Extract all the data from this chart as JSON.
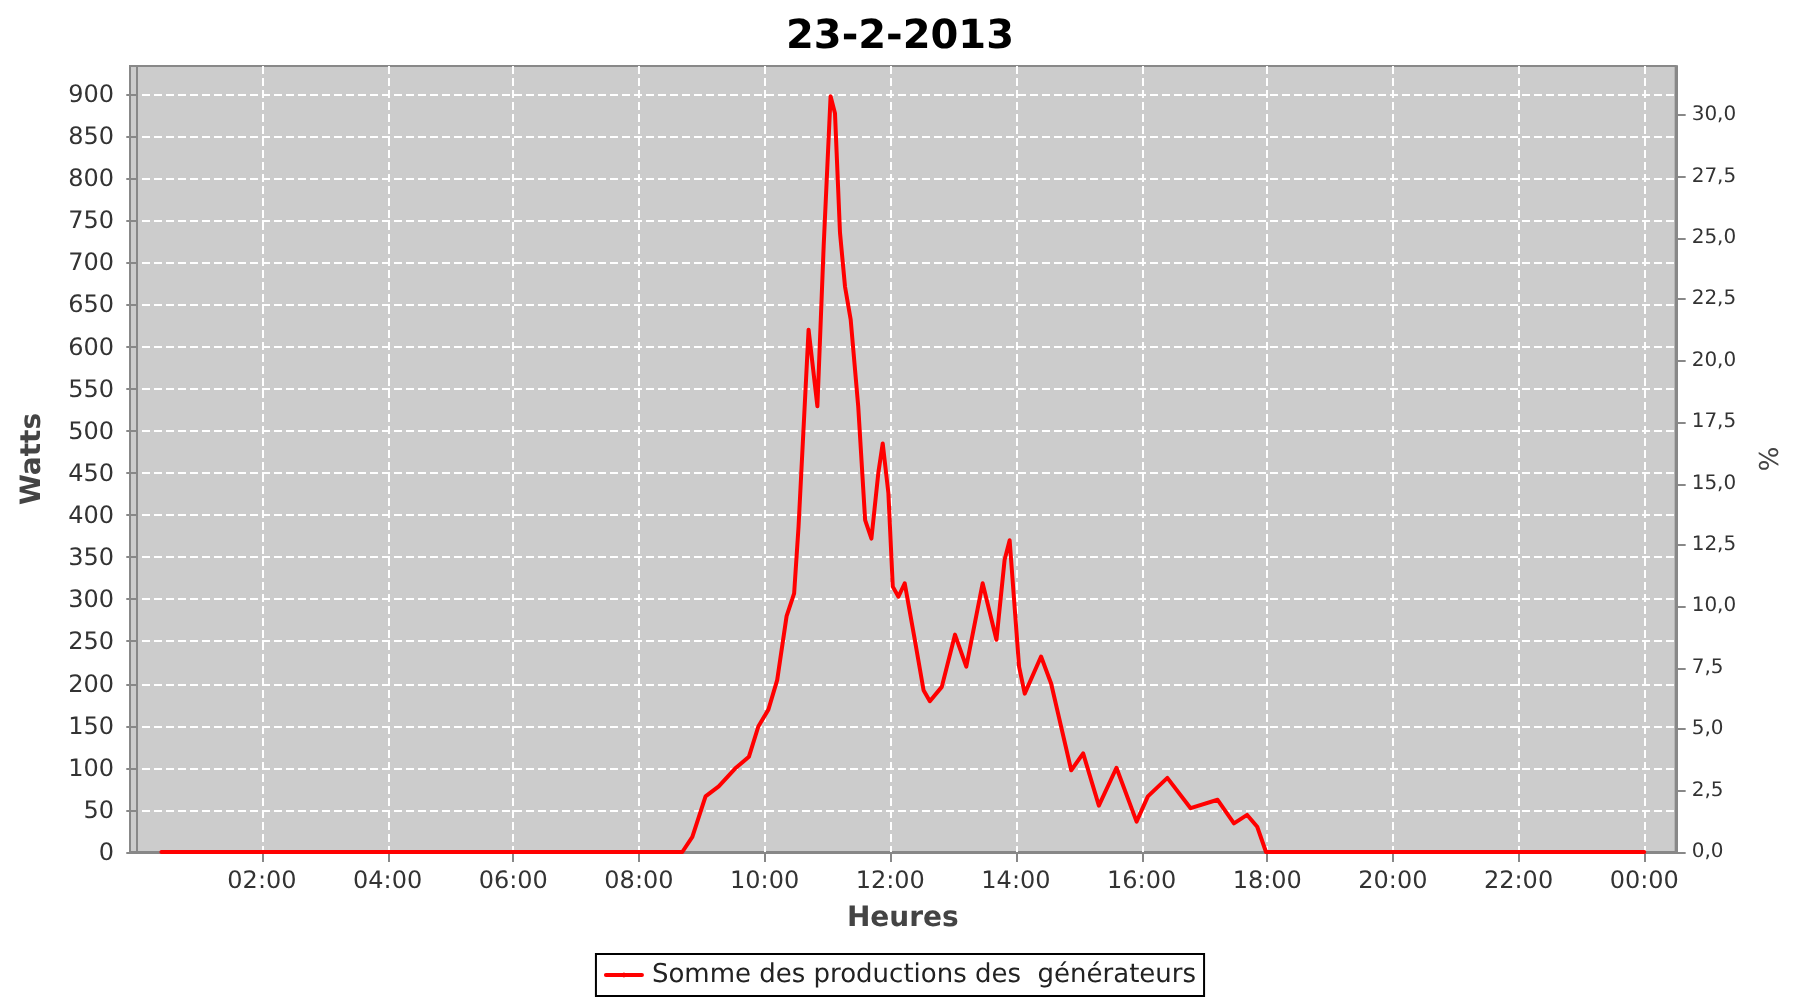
{
  "chart_data": {
    "type": "line",
    "title": "23-2-2013",
    "xlabel": "Heures",
    "ylabel": "Watts",
    "y2label": "%",
    "xlim": [
      -0.1,
      24.5
    ],
    "xticks": [
      {
        "value": 2,
        "label": "02:00"
      },
      {
        "value": 4,
        "label": "04:00"
      },
      {
        "value": 6,
        "label": "06:00"
      },
      {
        "value": 8,
        "label": "08:00"
      },
      {
        "value": 10,
        "label": "10:00"
      },
      {
        "value": 12,
        "label": "12:00"
      },
      {
        "value": 14,
        "label": "14:00"
      },
      {
        "value": 16,
        "label": "16:00"
      },
      {
        "value": 18,
        "label": "18:00"
      },
      {
        "value": 20,
        "label": "20:00"
      },
      {
        "value": 22,
        "label": "22:00"
      },
      {
        "value": 24,
        "label": "00:00"
      }
    ],
    "ylim": [
      0,
      933
    ],
    "yticks": [
      0,
      50,
      100,
      150,
      200,
      250,
      300,
      350,
      400,
      450,
      500,
      550,
      600,
      650,
      700,
      750,
      800,
      850,
      900
    ],
    "y2lim": [
      0,
      32
    ],
    "y2ticks": [
      {
        "value": 0,
        "label": "0,0"
      },
      {
        "value": 2.5,
        "label": "2,5"
      },
      {
        "value": 5,
        "label": "5,0"
      },
      {
        "value": 7.5,
        "label": "7,5"
      },
      {
        "value": 10,
        "label": "10,0"
      },
      {
        "value": 12.5,
        "label": "12,5"
      },
      {
        "value": 15,
        "label": "15,0"
      },
      {
        "value": 17.5,
        "label": "17,5"
      },
      {
        "value": 20,
        "label": "20,0"
      },
      {
        "value": 22.5,
        "label": "22,5"
      },
      {
        "value": 25,
        "label": "25,0"
      },
      {
        "value": 27.5,
        "label": "27,5"
      },
      {
        "value": 30,
        "label": "30,0"
      }
    ],
    "grid": true,
    "legend": "bottom",
    "line_style": "solid",
    "series": [
      {
        "name": "Somme des productions des  générateurs",
        "color": "#ff0000",
        "x": [
          0.4,
          8.6,
          8.69,
          8.85,
          9.06,
          9.27,
          9.53,
          9.75,
          9.9,
          10.06,
          10.2,
          10.35,
          10.47,
          10.54,
          10.7,
          10.84,
          10.94,
          11.05,
          11.12,
          11.2,
          11.28,
          11.37,
          11.49,
          11.6,
          11.7,
          11.81,
          11.88,
          11.97,
          12.04,
          12.13,
          12.23,
          12.39,
          12.53,
          12.63,
          12.82,
          13.03,
          13.21,
          13.47,
          13.69,
          13.82,
          13.9,
          14.05,
          14.14,
          14.4,
          14.56,
          14.88,
          15.07,
          15.32,
          15.6,
          15.92,
          16.1,
          16.41,
          16.78,
          17.21,
          17.47,
          17.68,
          17.84,
          17.98,
          24
        ],
        "values": [
          0,
          0,
          0,
          18,
          66,
          78,
          99,
          113,
          149,
          169,
          204,
          280,
          307,
          386,
          620,
          529,
          719,
          897,
          877,
          735,
          671,
          632,
          529,
          394,
          372,
          450,
          485,
          426,
          315,
          303,
          319,
          252,
          192,
          179,
          196,
          258,
          220,
          319,
          252,
          347,
          370,
          220,
          188,
          232,
          200,
          97,
          117,
          55,
          100,
          36,
          66,
          88,
          52,
          62,
          34,
          44,
          30,
          0,
          0
        ]
      }
    ]
  }
}
